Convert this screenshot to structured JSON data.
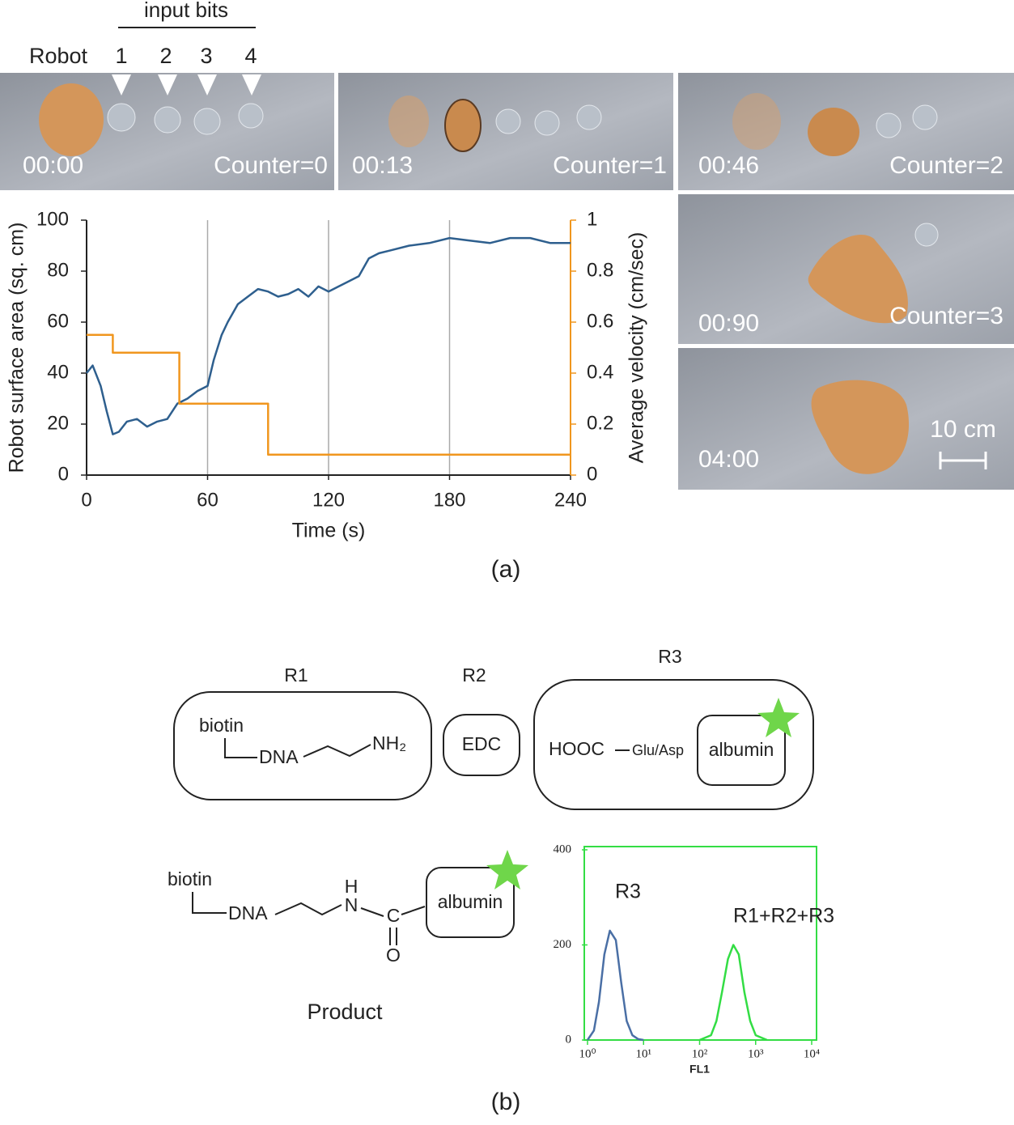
{
  "panel_a": {
    "input_bits_label": "input bits",
    "robot_label": "Robot",
    "bits": [
      "1",
      "2",
      "3",
      "4"
    ],
    "frames": [
      {
        "time": "00:00",
        "counter": "Counter=0"
      },
      {
        "time": "00:13",
        "counter": "Counter=1"
      },
      {
        "time": "00:46",
        "counter": "Counter=2"
      },
      {
        "time": "00:90",
        "counter": "Counter=3"
      },
      {
        "time": "04:00",
        "scale": "10 cm"
      }
    ],
    "caption": "(a)"
  },
  "chart_data": [
    {
      "type": "line",
      "xlabel": "Time (s)",
      "ylabel": "Robot surface area (sq. cm)",
      "y2label": "Average velocity (cm/sec)",
      "xlim": [
        0,
        240
      ],
      "xticks": [
        0,
        60,
        120,
        180,
        240
      ],
      "ylim": [
        0,
        100
      ],
      "yticks": [
        0,
        20,
        40,
        60,
        80,
        100
      ],
      "y2lim": [
        0,
        1
      ],
      "y2ticks": [
        0,
        0.2,
        0.4,
        0.6,
        0.8,
        1
      ],
      "grid": "x",
      "series": [
        {
          "color": "#2e5f8e",
          "x": [
            0,
            3,
            7,
            10,
            13,
            16,
            20,
            25,
            30,
            35,
            40,
            45,
            50,
            55,
            60,
            63,
            67,
            70,
            75,
            80,
            85,
            90,
            95,
            100,
            105,
            110,
            115,
            120,
            125,
            130,
            135,
            140,
            145,
            150,
            160,
            170,
            180,
            190,
            200,
            210,
            220,
            230,
            240
          ],
          "values": [
            40,
            43,
            35,
            25,
            16,
            17,
            21,
            22,
            19,
            21,
            22,
            28,
            30,
            33,
            35,
            45,
            55,
            60,
            67,
            70,
            73,
            72,
            70,
            71,
            73,
            70,
            74,
            72,
            74,
            76,
            78,
            85,
            87,
            88,
            90,
            91,
            93,
            92,
            91,
            93,
            93,
            91,
            91
          ]
        },
        {
          "color": "#f0961e",
          "axis": "y2",
          "x": [
            0,
            13,
            13,
            46,
            46,
            90,
            90,
            240
          ],
          "values": [
            0.55,
            0.55,
            0.48,
            0.48,
            0.28,
            0.28,
            0.08,
            0.08
          ]
        }
      ]
    },
    {
      "type": "line",
      "xscale": "log",
      "xlabel": "FL1",
      "xlim": [
        1,
        10000
      ],
      "xticks": [
        {
          "value": 1,
          "label": "10⁰"
        },
        {
          "value": 10,
          "label": "10¹"
        },
        {
          "value": 100,
          "label": "10²"
        },
        {
          "value": 1000,
          "label": "10³"
        },
        {
          "value": 10000,
          "label": "10⁴"
        }
      ],
      "ylim": [
        0,
        400
      ],
      "yticks": [
        0,
        200,
        400
      ],
      "frame_color": "#33dd44",
      "series": [
        {
          "name": "R3",
          "color": "#4a6fa5",
          "x": [
            1,
            1.3,
            1.6,
            2,
            2.5,
            3.2,
            4,
            5,
            6.3,
            8,
            10
          ],
          "values": [
            0,
            20,
            80,
            180,
            230,
            210,
            120,
            40,
            10,
            2,
            0
          ]
        },
        {
          "name": "R1+R2+R3",
          "color": "#33dd44",
          "x": [
            100,
            160,
            200,
            250,
            320,
            400,
            500,
            630,
            800,
            1000,
            1600
          ],
          "values": [
            0,
            10,
            40,
            100,
            170,
            200,
            180,
            100,
            40,
            10,
            0
          ]
        }
      ]
    }
  ],
  "panel_b": {
    "r1": {
      "label": "R1",
      "biotin": "biotin",
      "dna": "DNA",
      "amine": "NH₂"
    },
    "r2": {
      "label": "R2",
      "reagent": "EDC"
    },
    "r3": {
      "label": "R3",
      "acid": "HOOC",
      "residue": "Glu/Asp",
      "protein": "albumin"
    },
    "product": {
      "biotin": "biotin",
      "dna": "DNA",
      "h": "H",
      "n": "N",
      "c": "C",
      "o": "O",
      "protein": "albumin",
      "label": "Product"
    },
    "caption": "(b)"
  }
}
